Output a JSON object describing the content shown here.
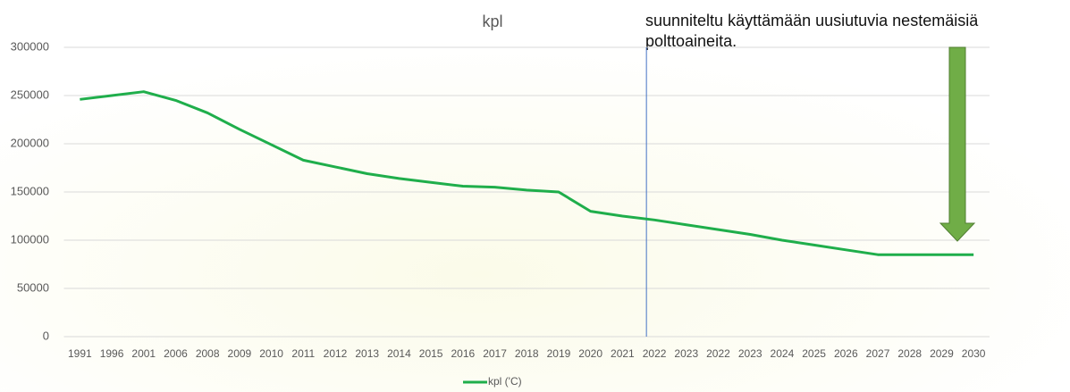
{
  "chart_data": {
    "type": "line",
    "title": "kpl",
    "categories": [
      "1991",
      "1996",
      "2001",
      "2006",
      "2008",
      "2009",
      "2010",
      "2011",
      "2012",
      "2013",
      "2014",
      "2015",
      "2016",
      "2017",
      "2018",
      "2019",
      "2020",
      "2021",
      "2022",
      "2023",
      "2022",
      "2023",
      "2024",
      "2025",
      "2026",
      "2027",
      "2028",
      "2029",
      "2030"
    ],
    "series": [
      {
        "name": "kpl ('C)",
        "color": "#1fae4b",
        "values": [
          246000,
          250000,
          254000,
          245000,
          232000,
          215000,
          199000,
          183000,
          176000,
          169000,
          164000,
          160000,
          156000,
          155000,
          152000,
          150000,
          130000,
          125000,
          121000,
          116000,
          111000,
          106000,
          100000,
          95000,
          90000,
          85000,
          85000,
          85000,
          85000
        ]
      }
    ],
    "ylim": [
      0,
      300000
    ],
    "yticks": [
      0,
      50000,
      100000,
      150000,
      200000,
      250000,
      300000
    ],
    "grid": true,
    "legend": "bottom",
    "annotation": [
      "suunniteltu käyttämään uusiutuvia nestemäisiä",
      "polttoaineita."
    ]
  }
}
